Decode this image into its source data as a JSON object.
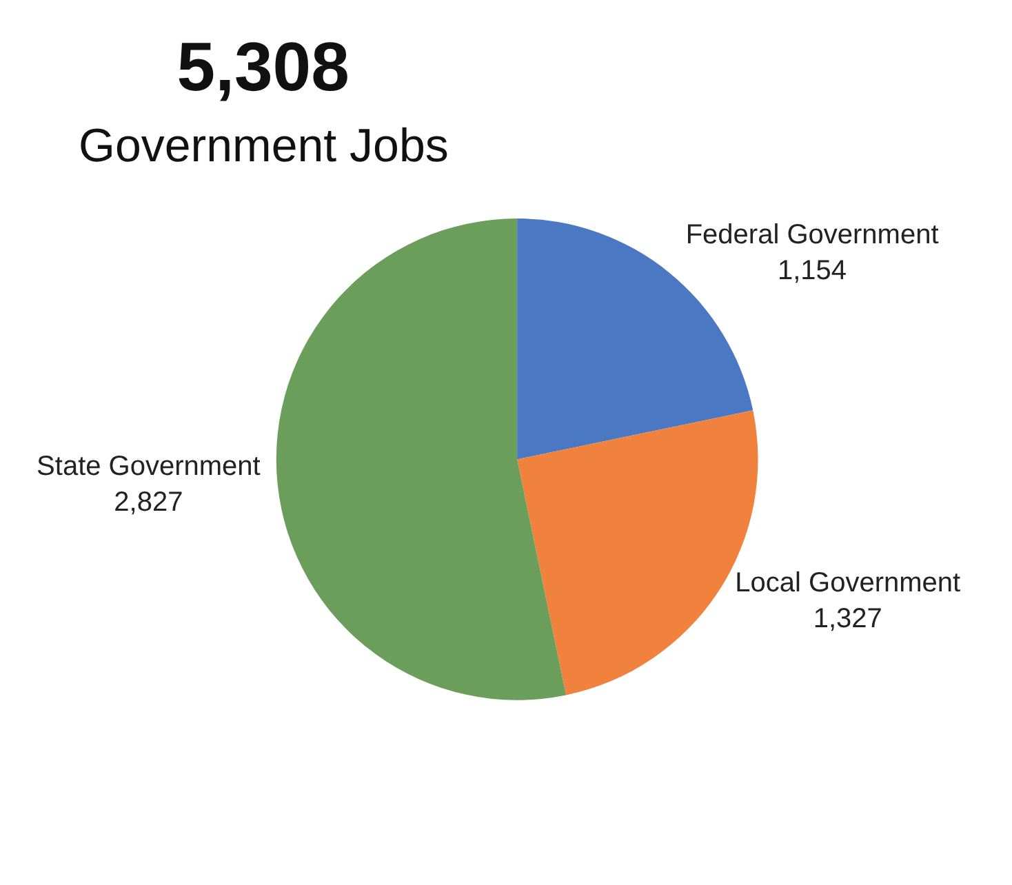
{
  "chart_data": {
    "type": "pie",
    "title": "5,308",
    "subtitle": "Government Jobs",
    "categories": [
      "Federal Government",
      "Local Government",
      "State Government"
    ],
    "values": [
      1154,
      1327,
      2827
    ],
    "value_labels": [
      "1,154",
      "1,327",
      "2,827"
    ],
    "colors": [
      "#4a78c2",
      "#f0823e",
      "#6b9e5a"
    ]
  }
}
